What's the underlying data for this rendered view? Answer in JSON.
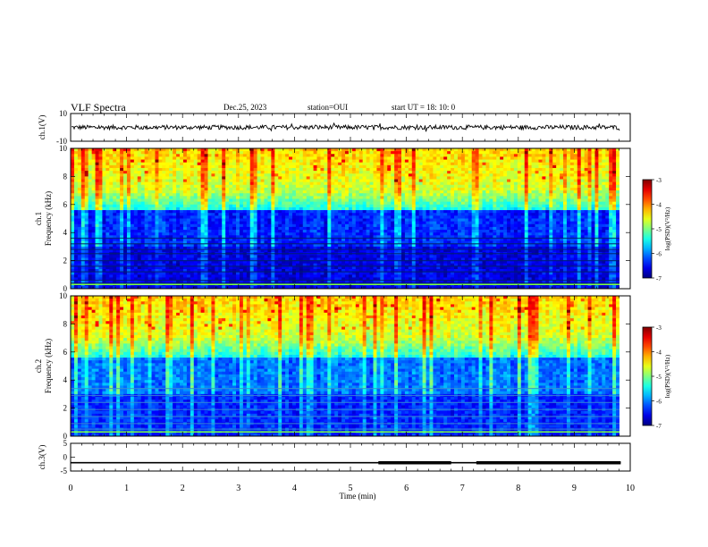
{
  "header": {
    "title": "VLF Spectra",
    "date": "Dec.25, 2023",
    "station": "station=OUI",
    "start": "start  UT  =   18: 10: 0"
  },
  "chart_data": [
    {
      "type": "line",
      "panel": "waveform-ch1",
      "ylabel": "ch.1(V)",
      "ylim": [
        -10,
        10
      ],
      "yticks": [
        "10",
        "-10"
      ],
      "x_range_min": [
        0,
        9.83
      ],
      "series": [
        {
          "values_description_level": 0
        }
      ]
    },
    {
      "type": "heatmap",
      "panel": "spectrogram-ch1",
      "ylabel_top": "ch.1",
      "ylabel": "Frequency (kHz)",
      "ylim": [
        0,
        10
      ],
      "yticks": [
        "0",
        "2",
        "4",
        "6",
        "8",
        "10"
      ],
      "colorbar": {
        "label": "log(PSD)(V²/Hz)",
        "range": [
          -7,
          -3
        ],
        "ticks": [
          "-3",
          "-4",
          "-5",
          "-6",
          "-7"
        ]
      }
    },
    {
      "type": "heatmap",
      "panel": "spectrogram-ch2",
      "ylabel_top": "ch.2",
      "ylabel": "Frequency (kHz)",
      "ylim": [
        0,
        10
      ],
      "yticks": [
        "0",
        "2",
        "4",
        "6",
        "8",
        "10"
      ],
      "colorbar": {
        "label": "log(PSD)(V²/Hz)",
        "range": [
          -7,
          -3
        ],
        "ticks": [
          "-3",
          "-4",
          "-5",
          "-6",
          "-7"
        ]
      }
    },
    {
      "type": "line",
      "panel": "waveform-ch3",
      "ylabel": "ch.3(V)",
      "ylim": [
        -5,
        5
      ],
      "yticks": [
        "5",
        "0",
        "-5"
      ],
      "series": [
        {
          "segment": "baseline",
          "x": [
            0,
            9.83
          ],
          "y": [
            -2,
            -2
          ]
        },
        {
          "segment": "thick",
          "x": [
            5.5,
            6.8
          ],
          "y": [
            -2,
            -2
          ]
        },
        {
          "segment": "thick",
          "x": [
            7.25,
            9.83
          ],
          "y": [
            -2,
            -2
          ]
        }
      ]
    }
  ],
  "xaxis": {
    "xlabel": "Time (min)",
    "xlim": [
      0,
      10
    ],
    "ticks": [
      "0",
      "1",
      "2",
      "3",
      "4",
      "5",
      "6",
      "7",
      "8",
      "9",
      "10"
    ]
  }
}
